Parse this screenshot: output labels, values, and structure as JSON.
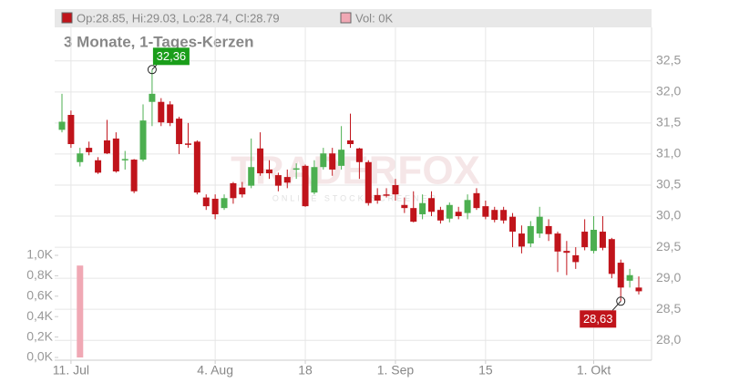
{
  "chart_data": {
    "type": "candlestick",
    "header": "Op:28.85, Hi:29.03, Lo:28.74, Cl:28.79",
    "volume_header": "Vol: 0K",
    "subtitle": "3 Monate, 1-Tages-Kerzen",
    "watermark": "TRADERFOX",
    "watermark_sub": "ONLINE STOCK SCREENER",
    "categories": [
      null,
      "11. Jul",
      null,
      null,
      null,
      null,
      null,
      null,
      null,
      null,
      null,
      null,
      null,
      null,
      null,
      null,
      null,
      "4. Aug",
      null,
      null,
      null,
      null,
      null,
      null,
      null,
      null,
      null,
      "18",
      null,
      null,
      null,
      null,
      null,
      null,
      null,
      null,
      null,
      "1. Sep",
      null,
      null,
      null,
      null,
      null,
      null,
      null,
      null,
      null,
      "15",
      null,
      null,
      null,
      null,
      null,
      null,
      null,
      null,
      null,
      null,
      null,
      "1. Okt",
      null,
      null,
      null,
      null,
      null
    ],
    "open": [
      31.39,
      31.63,
      30.87,
      31.1,
      30.9,
      31.22,
      31.25,
      30.9,
      30.91,
      30.91,
      31.84,
      31.84,
      31.8,
      31.57,
      31.17,
      31.2,
      30.3,
      30.28,
      30.13,
      30.53,
      30.46,
      30.49,
      31.09,
      30.75,
      30.66,
      30.63,
      30.75,
      30.81,
      30.38,
      30.79,
      31.01,
      30.81,
      31.22,
      31.09,
      30.87,
      30.34,
      30.35,
      30.5,
      30.18,
      30.13,
      30.03,
      30.29,
      30.1,
      29.96,
      30.07,
      30.05,
      30.37,
      30.16,
      30.1,
      30.1,
      29.99,
      29.72,
      29.56,
      29.72,
      29.84,
      29.72,
      29.44,
      29.37,
      29.75,
      29.44,
      29.75,
      29.63,
      29.25,
      28.96,
      28.85
    ],
    "high": [
      31.97,
      31.7,
      31.1,
      31.2,
      30.95,
      31.55,
      31.35,
      31.05,
      30.92,
      31.8,
      32.36,
      31.9,
      31.85,
      31.6,
      31.5,
      31.22,
      30.35,
      30.35,
      30.35,
      30.55,
      30.55,
      31.25,
      31.35,
      30.9,
      30.7,
      30.75,
      30.85,
      30.83,
      30.9,
      31.1,
      31.1,
      31.45,
      31.65,
      31.1,
      30.9,
      30.45,
      30.45,
      30.6,
      30.3,
      30.4,
      30.35,
      30.4,
      30.15,
      30.22,
      30.15,
      30.35,
      30.45,
      30.25,
      30.15,
      30.15,
      30.05,
      29.85,
      29.92,
      30.15,
      29.95,
      29.75,
      29.6,
      29.5,
      29.95,
      30.0,
      30.0,
      29.65,
      29.3,
      29.15,
      29.03
    ],
    "low": [
      31.35,
      31.1,
      30.8,
      30.98,
      30.68,
      31.0,
      30.7,
      30.75,
      30.37,
      30.88,
      31.45,
      31.45,
      31.45,
      31.0,
      31.1,
      30.35,
      30.1,
      29.95,
      30.1,
      30.2,
      30.3,
      30.45,
      30.65,
      30.6,
      30.4,
      30.45,
      30.6,
      30.15,
      30.35,
      30.75,
      30.65,
      30.75,
      31.1,
      30.6,
      30.17,
      30.2,
      30.3,
      30.25,
      30.05,
      29.9,
      29.95,
      30.0,
      29.88,
      29.9,
      29.95,
      29.95,
      30.1,
      29.95,
      29.9,
      29.88,
      29.5,
      29.4,
      29.5,
      29.65,
      29.6,
      29.1,
      29.05,
      29.15,
      29.45,
      29.4,
      29.45,
      29.0,
      28.63,
      28.85,
      28.74
    ],
    "close": [
      31.52,
      31.16,
      31.01,
      31.03,
      30.7,
      31.01,
      30.72,
      30.92,
      30.4,
      31.54,
      31.97,
      31.51,
      31.5,
      31.16,
      31.16,
      30.38,
      30.16,
      30.03,
      30.29,
      30.29,
      30.35,
      30.79,
      30.69,
      30.69,
      30.49,
      30.54,
      30.77,
      30.16,
      30.79,
      31.01,
      30.75,
      31.07,
      31.16,
      30.87,
      30.21,
      30.25,
      30.34,
      30.35,
      30.13,
      29.91,
      30.21,
      30.07,
      29.93,
      30.18,
      30.0,
      30.26,
      30.13,
      29.99,
      29.94,
      29.93,
      29.75,
      29.51,
      29.84,
      29.99,
      29.71,
      29.43,
      29.41,
      29.26,
      29.5,
      29.78,
      29.49,
      29.07,
      28.85,
      29.05,
      28.79
    ],
    "volume": [
      0,
      0,
      0.9,
      0,
      0,
      0,
      0,
      0,
      0,
      0,
      0,
      0,
      0,
      0,
      0,
      0,
      0,
      0,
      0,
      0,
      0,
      0,
      0,
      0,
      0,
      0,
      0,
      0,
      0,
      0,
      0,
      0,
      0,
      0,
      0,
      0,
      0,
      0,
      0,
      0,
      0,
      0,
      0,
      0,
      0,
      0,
      0,
      0,
      0,
      0,
      0,
      0,
      0,
      0,
      0,
      0,
      0,
      0,
      0,
      0,
      0,
      0,
      0,
      0,
      0
    ],
    "up_color": "#4caf50",
    "down_color": "#c0141b",
    "volume_color": "#f0a8b4",
    "ylim": [
      27.68,
      33.04
    ],
    "yticks": [
      {
        "value": 28.0,
        "label": "28,0"
      },
      {
        "value": 28.5,
        "label": "28,5"
      },
      {
        "value": 29.0,
        "label": "29,0"
      },
      {
        "value": 29.5,
        "label": "29,5"
      },
      {
        "value": 30.0,
        "label": "30,0"
      },
      {
        "value": 30.5,
        "label": "30,5"
      },
      {
        "value": 31.0,
        "label": "31,0"
      },
      {
        "value": 31.5,
        "label": "31,5"
      },
      {
        "value": 32.0,
        "label": "32,0"
      },
      {
        "value": 32.5,
        "label": "32,5"
      }
    ],
    "vlim": [
      0,
      1.0
    ],
    "vticks": [
      {
        "value": 0,
        "label": "0,0K"
      },
      {
        "value": 0.2,
        "label": "0,2K"
      },
      {
        "value": 0.4,
        "label": "0,4K"
      },
      {
        "value": 0.6,
        "label": "0,6K"
      },
      {
        "value": 0.8,
        "label": "0,8K"
      },
      {
        "value": 1.0,
        "label": "1,0K"
      }
    ],
    "annotations": [
      {
        "text": "32,36",
        "value": 32.36
      },
      {
        "text": "28,63",
        "value": 28.63
      }
    ],
    "grid": true
  }
}
